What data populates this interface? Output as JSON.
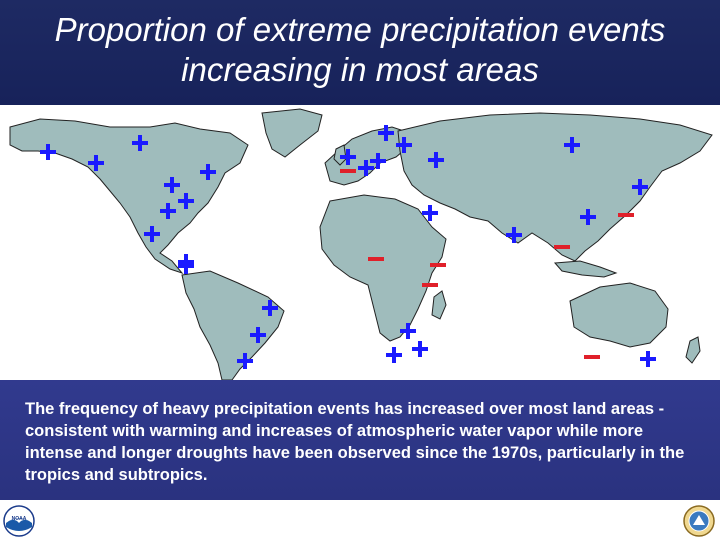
{
  "title": "Proportion of extreme precipitation events increasing in most areas",
  "caption": "The frequency of heavy precipitation events has increased over most land areas - consistent with warming and increases of atmospheric water vapor while more intense and longer droughts have been observed since the 1970s, particularly in the tropics and subtropics.",
  "map": {
    "land_color": "#9fbcbc",
    "plus_color": "#1a1aff",
    "minus_color": "#e0202a",
    "markers": [
      {
        "sign": "+",
        "region": "Alaska"
      },
      {
        "sign": "+",
        "region": "Northwest Canada"
      },
      {
        "sign": "+",
        "region": "Northern Canada"
      },
      {
        "sign": "+",
        "region": "Central Canada"
      },
      {
        "sign": "+",
        "region": "Eastern Canada"
      },
      {
        "sign": "+",
        "region": "Central United States"
      },
      {
        "sign": "+",
        "region": "Eastern United States"
      },
      {
        "sign": "+",
        "region": "Southwest United States"
      },
      {
        "sign": "+",
        "region": "Mexico"
      },
      {
        "sign": "+",
        "region": "Central America"
      },
      {
        "sign": "+",
        "region": "Southern Brazil"
      },
      {
        "sign": "+",
        "region": "Southeast South America"
      },
      {
        "sign": "+",
        "region": "Argentina"
      },
      {
        "sign": "+",
        "region": "British Isles"
      },
      {
        "sign": "-",
        "region": "Iberia"
      },
      {
        "sign": "+",
        "region": "Western Europe"
      },
      {
        "sign": "+",
        "region": "Central Europe"
      },
      {
        "sign": "+",
        "region": "Scandinavia"
      },
      {
        "sign": "+",
        "region": "Northern Scandinavia"
      },
      {
        "sign": "+",
        "region": "Western Russia"
      },
      {
        "sign": "+",
        "region": "Central Asia"
      },
      {
        "sign": "+",
        "region": "Siberia"
      },
      {
        "sign": "+",
        "region": "India"
      },
      {
        "sign": "+",
        "region": "China"
      },
      {
        "sign": "+",
        "region": "Japan"
      },
      {
        "sign": "-",
        "region": "Korea"
      },
      {
        "sign": "-",
        "region": "Southeast Asia"
      },
      {
        "sign": "-",
        "region": "West Africa"
      },
      {
        "sign": "-",
        "region": "East Africa"
      },
      {
        "sign": "-",
        "region": "Central Africa"
      },
      {
        "sign": "+",
        "region": "Southern Africa"
      },
      {
        "sign": "+",
        "region": "South Africa"
      },
      {
        "sign": "+",
        "region": "Southern Africa coast"
      },
      {
        "sign": "-",
        "region": "Western Australia"
      },
      {
        "sign": "+",
        "region": "Eastern Australia"
      }
    ]
  },
  "logos": {
    "left": "noaa-logo",
    "left_text": "NOAA",
    "right": "commerce-seal"
  }
}
